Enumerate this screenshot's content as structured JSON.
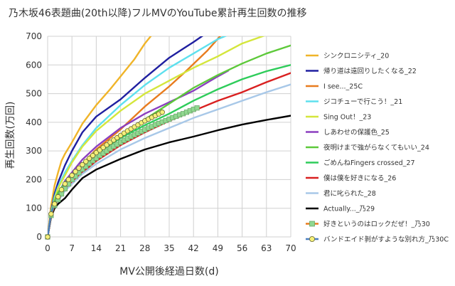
{
  "chart_data": {
    "type": "line",
    "title": "乃木坂46表題曲(20th以降)フルMVのYouTube累計再生回数の推移",
    "xlabel": "MV公開後経過日数(d)",
    "ylabel": "再生回数(万回)",
    "xlim": [
      0,
      70
    ],
    "ylim": [
      0,
      700
    ],
    "xticks": [
      "0",
      "7",
      "14",
      "21",
      "28",
      "35",
      "42",
      "49",
      "56",
      "63",
      "70"
    ],
    "yticks": [
      "0",
      "100",
      "200",
      "300",
      "400",
      "500",
      "600",
      "700"
    ],
    "grid": true,
    "legend_position": "right",
    "series": [
      {
        "name": "シンクロニシティ_20",
        "color": "#f0b429",
        "points": [
          [
            0,
            0
          ],
          [
            1,
            110
          ],
          [
            2,
            180
          ],
          [
            3,
            225
          ],
          [
            4,
            265
          ],
          [
            5,
            290
          ],
          [
            7,
            330
          ],
          [
            10,
            395
          ],
          [
            14,
            460
          ],
          [
            18,
            515
          ],
          [
            21,
            560
          ],
          [
            25,
            620
          ],
          [
            28,
            675
          ],
          [
            30,
            705
          ]
        ]
      },
      {
        "name": "帰り道は遠回りしたくなる_22",
        "color": "#1f1fa0",
        "points": [
          [
            0,
            0
          ],
          [
            1,
            90
          ],
          [
            2,
            150
          ],
          [
            3,
            190
          ],
          [
            5,
            250
          ],
          [
            7,
            300
          ],
          [
            10,
            365
          ],
          [
            14,
            420
          ],
          [
            21,
            480
          ],
          [
            28,
            555
          ],
          [
            35,
            625
          ],
          [
            42,
            680
          ],
          [
            45,
            705
          ]
        ]
      },
      {
        "name": "I see..._25C",
        "color": "#e87c1e",
        "points": [
          [
            0,
            0
          ],
          [
            1,
            70
          ],
          [
            2,
            110
          ],
          [
            3,
            135
          ],
          [
            5,
            170
          ],
          [
            7,
            205
          ],
          [
            10,
            255
          ],
          [
            14,
            305
          ],
          [
            21,
            375
          ],
          [
            28,
            455
          ],
          [
            35,
            525
          ],
          [
            40,
            580
          ],
          [
            46,
            650
          ],
          [
            50,
            705
          ]
        ]
      },
      {
        "name": "ジコチューで行こう！_21",
        "color": "#5ee0ee",
        "points": [
          [
            0,
            0
          ],
          [
            1,
            85
          ],
          [
            2,
            140
          ],
          [
            3,
            175
          ],
          [
            5,
            225
          ],
          [
            7,
            265
          ],
          [
            10,
            320
          ],
          [
            14,
            380
          ],
          [
            21,
            460
          ],
          [
            28,
            530
          ],
          [
            35,
            590
          ],
          [
            42,
            640
          ],
          [
            49,
            690
          ],
          [
            52,
            705
          ]
        ]
      },
      {
        "name": "Sing Out！_23",
        "color": "#d4e63c",
        "points": [
          [
            0,
            0
          ],
          [
            1,
            80
          ],
          [
            2,
            130
          ],
          [
            3,
            170
          ],
          [
            5,
            215
          ],
          [
            7,
            260
          ],
          [
            10,
            315
          ],
          [
            14,
            370
          ],
          [
            21,
            440
          ],
          [
            28,
            500
          ],
          [
            35,
            545
          ],
          [
            42,
            590
          ],
          [
            49,
            630
          ],
          [
            56,
            675
          ],
          [
            63,
            705
          ]
        ]
      },
      {
        "name": "しあわせの保護色_25",
        "color": "#8b3fbf",
        "points": [
          [
            0,
            0
          ],
          [
            1,
            75
          ],
          [
            2,
            120
          ],
          [
            3,
            150
          ],
          [
            5,
            195
          ],
          [
            7,
            225
          ],
          [
            10,
            270
          ],
          [
            14,
            315
          ],
          [
            21,
            380
          ],
          [
            28,
            430
          ],
          [
            35,
            470
          ],
          [
            42,
            510
          ],
          [
            49,
            560
          ],
          [
            52,
            580
          ]
        ]
      },
      {
        "name": "夜明けまで強がらなくてもいい_24",
        "color": "#5dc93a",
        "points": [
          [
            0,
            0
          ],
          [
            1,
            80
          ],
          [
            2,
            125
          ],
          [
            3,
            155
          ],
          [
            5,
            190
          ],
          [
            7,
            215
          ],
          [
            10,
            255
          ],
          [
            14,
            300
          ],
          [
            21,
            355
          ],
          [
            28,
            410
          ],
          [
            35,
            465
          ],
          [
            42,
            520
          ],
          [
            49,
            565
          ],
          [
            56,
            605
          ],
          [
            63,
            640
          ],
          [
            70,
            668
          ]
        ]
      },
      {
        "name": "ごめんねFingers crossed_27",
        "color": "#2ecc5a",
        "points": [
          [
            0,
            0
          ],
          [
            1,
            75
          ],
          [
            2,
            115
          ],
          [
            3,
            140
          ],
          [
            5,
            180
          ],
          [
            7,
            205
          ],
          [
            10,
            245
          ],
          [
            14,
            290
          ],
          [
            21,
            345
          ],
          [
            28,
            390
          ],
          [
            35,
            430
          ],
          [
            42,
            475
          ],
          [
            49,
            515
          ],
          [
            56,
            550
          ],
          [
            63,
            578
          ],
          [
            70,
            600
          ]
        ]
      },
      {
        "name": "僕は僕を好きになる_26",
        "color": "#d92020",
        "points": [
          [
            0,
            0
          ],
          [
            1,
            75
          ],
          [
            2,
            110
          ],
          [
            3,
            130
          ],
          [
            5,
            165
          ],
          [
            7,
            190
          ],
          [
            10,
            225
          ],
          [
            14,
            265
          ],
          [
            21,
            320
          ],
          [
            28,
            365
          ],
          [
            35,
            405
          ],
          [
            42,
            440
          ],
          [
            49,
            475
          ],
          [
            56,
            505
          ],
          [
            63,
            540
          ],
          [
            70,
            572
          ]
        ]
      },
      {
        "name": "君に叱られた_28",
        "color": "#a8c8e8",
        "points": [
          [
            0,
            0
          ],
          [
            1,
            70
          ],
          [
            2,
            105
          ],
          [
            3,
            125
          ],
          [
            5,
            160
          ],
          [
            7,
            185
          ],
          [
            10,
            220
          ],
          [
            14,
            255
          ],
          [
            21,
            305
          ],
          [
            28,
            345
          ],
          [
            35,
            380
          ],
          [
            42,
            415
          ],
          [
            49,
            445
          ],
          [
            56,
            475
          ],
          [
            63,
            505
          ],
          [
            70,
            532
          ]
        ]
      },
      {
        "name": "Actually..._乃29",
        "color": "#000000",
        "points": [
          [
            0,
            0
          ],
          [
            1,
            70
          ],
          [
            2,
            100
          ],
          [
            3,
            115
          ],
          [
            5,
            135
          ],
          [
            7,
            165
          ],
          [
            10,
            205
          ],
          [
            14,
            235
          ],
          [
            21,
            272
          ],
          [
            28,
            305
          ],
          [
            35,
            330
          ],
          [
            42,
            350
          ],
          [
            49,
            372
          ],
          [
            56,
            392
          ],
          [
            63,
            408
          ],
          [
            70,
            423
          ]
        ]
      },
      {
        "name": "好きというのはロックだぜ！_乃30",
        "color": "#e87c1e",
        "marker": "square",
        "marker_fill": "#90d890",
        "points": [
          [
            0,
            0
          ],
          [
            1,
            75
          ],
          [
            2,
            110
          ],
          [
            3,
            130
          ],
          [
            4,
            150
          ],
          [
            5,
            168
          ],
          [
            6,
            185
          ],
          [
            7,
            200
          ],
          [
            8,
            212
          ],
          [
            9,
            224
          ],
          [
            10,
            236
          ],
          [
            11,
            246
          ],
          [
            12,
            256
          ],
          [
            13,
            266
          ],
          [
            14,
            275
          ],
          [
            15,
            284
          ],
          [
            16,
            292
          ],
          [
            17,
            300
          ],
          [
            18,
            308
          ],
          [
            19,
            316
          ],
          [
            20,
            323
          ],
          [
            21,
            330
          ],
          [
            22,
            337
          ],
          [
            23,
            343
          ],
          [
            24,
            350
          ],
          [
            25,
            356
          ],
          [
            26,
            362
          ],
          [
            27,
            368
          ],
          [
            28,
            374
          ],
          [
            29,
            380
          ],
          [
            30,
            385
          ],
          [
            31,
            391
          ],
          [
            32,
            396
          ],
          [
            33,
            401
          ],
          [
            34,
            406
          ],
          [
            35,
            411
          ],
          [
            36,
            416
          ],
          [
            37,
            421
          ],
          [
            38,
            426
          ],
          [
            39,
            430
          ],
          [
            40,
            435
          ],
          [
            41,
            440
          ],
          [
            42,
            445
          ],
          [
            43,
            450
          ]
        ]
      },
      {
        "name": "バンドエイド剝がすような別れ方_乃30C",
        "color": "#4a7fc0",
        "marker": "circle",
        "marker_fill": "#f5f07a",
        "points": [
          [
            0,
            0
          ],
          [
            1,
            80
          ],
          [
            2,
            115
          ],
          [
            3,
            140
          ],
          [
            4,
            165
          ],
          [
            5,
            185
          ],
          [
            6,
            200
          ],
          [
            7,
            215
          ],
          [
            8,
            228
          ],
          [
            9,
            240
          ],
          [
            10,
            252
          ],
          [
            11,
            263
          ],
          [
            12,
            274
          ],
          [
            13,
            284
          ],
          [
            14,
            294
          ],
          [
            15,
            303
          ],
          [
            16,
            312
          ],
          [
            17,
            321
          ],
          [
            18,
            330
          ],
          [
            19,
            338
          ],
          [
            20,
            346
          ],
          [
            21,
            354
          ],
          [
            22,
            362
          ],
          [
            23,
            370
          ],
          [
            24,
            377
          ],
          [
            25,
            384
          ],
          [
            26,
            391
          ],
          [
            27,
            398
          ],
          [
            28,
            405
          ],
          [
            29,
            411
          ],
          [
            30,
            417
          ],
          [
            31,
            423
          ],
          [
            32,
            429
          ],
          [
            33,
            435
          ]
        ]
      }
    ]
  }
}
